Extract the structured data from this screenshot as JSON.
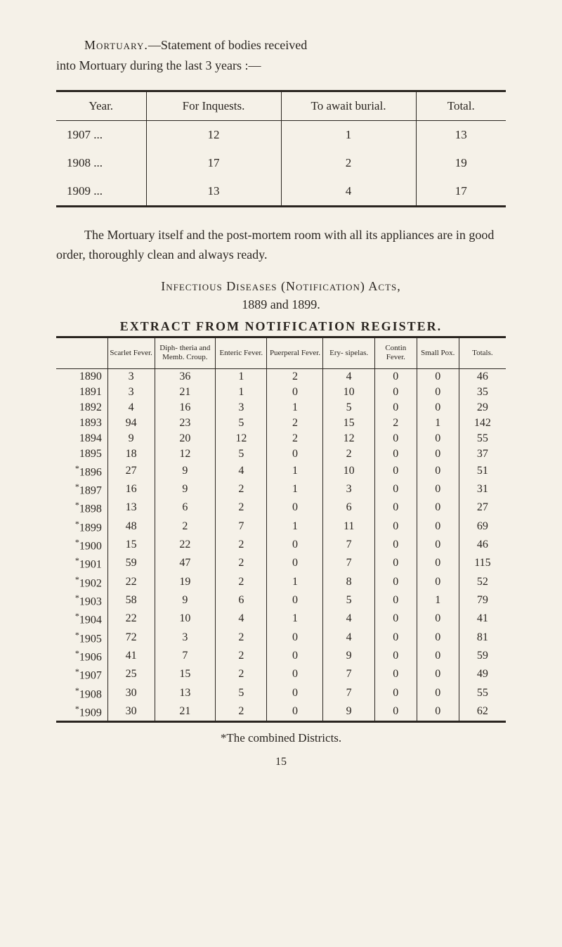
{
  "intro": {
    "line1_prefix": "Mortuary.",
    "line1_rest": "—Statement of bodies received",
    "line2": "into Mortuary during the last 3 years :—"
  },
  "table1": {
    "headers": [
      "Year.",
      "For Inquests.",
      "To await burial.",
      "Total."
    ],
    "rows": [
      [
        "1907 ...",
        "12",
        "1",
        "13"
      ],
      [
        "1908 ...",
        "17",
        "2",
        "19"
      ],
      [
        "1909 ...",
        "13",
        "4",
        "17"
      ]
    ],
    "col_widths": [
      "20%",
      "30%",
      "30%",
      "20%"
    ]
  },
  "middle": "The Mortuary itself and the post-mortem room with all its appliances are in good order, thoroughly clean and always ready.",
  "section": {
    "title_part1": "Infectious Diseases (Notification) Acts,",
    "dates": "1889 and 1899.",
    "extract": "EXTRACT FROM NOTIFICATION REGISTER."
  },
  "table2": {
    "headers": [
      "",
      "Scarlet Fever.",
      "Diph- theria and Memb. Croup.",
      "Enteric Fever.",
      "Puerperal Fever.",
      "Ery- sipelas.",
      "Contin Fever.",
      "Small Pox.",
      "Totals."
    ],
    "rows": [
      {
        "year": "1890",
        "mark": "",
        "vals": [
          "3",
          "36",
          "1",
          "2",
          "4",
          "0",
          "0",
          "46"
        ]
      },
      {
        "year": "1891",
        "mark": "",
        "vals": [
          "3",
          "21",
          "1",
          "0",
          "10",
          "0",
          "0",
          "35"
        ]
      },
      {
        "year": "1892",
        "mark": "",
        "vals": [
          "4",
          "16",
          "3",
          "1",
          "5",
          "0",
          "0",
          "29"
        ]
      },
      {
        "year": "1893",
        "mark": "",
        "vals": [
          "94",
          "23",
          "5",
          "2",
          "15",
          "2",
          "1",
          "142"
        ]
      },
      {
        "year": "1894",
        "mark": "",
        "vals": [
          "9",
          "20",
          "12",
          "2",
          "12",
          "0",
          "0",
          "55"
        ]
      },
      {
        "year": "1895",
        "mark": "",
        "vals": [
          "18",
          "12",
          "5",
          "0",
          "2",
          "0",
          "0",
          "37"
        ]
      },
      {
        "year": "1896",
        "mark": "*",
        "vals": [
          "27",
          "9",
          "4",
          "1",
          "10",
          "0",
          "0",
          "51"
        ]
      },
      {
        "year": "1897",
        "mark": "*",
        "vals": [
          "16",
          "9",
          "2",
          "1",
          "3",
          "0",
          "0",
          "31"
        ]
      },
      {
        "year": "1898",
        "mark": "*",
        "vals": [
          "13",
          "6",
          "2",
          "0",
          "6",
          "0",
          "0",
          "27"
        ]
      },
      {
        "year": "1899",
        "mark": "*",
        "vals": [
          "48",
          "2",
          "7",
          "1",
          "11",
          "0",
          "0",
          "69"
        ]
      },
      {
        "year": "1900",
        "mark": "*",
        "vals": [
          "15",
          "22",
          "2",
          "0",
          "7",
          "0",
          "0",
          "46"
        ]
      },
      {
        "year": "1901",
        "mark": "*",
        "vals": [
          "59",
          "47",
          "2",
          "0",
          "7",
          "0",
          "0",
          "115"
        ]
      },
      {
        "year": "1902",
        "mark": "*",
        "vals": [
          "22",
          "19",
          "2",
          "1",
          "8",
          "0",
          "0",
          "52"
        ]
      },
      {
        "year": "1903",
        "mark": "*",
        "vals": [
          "58",
          "9",
          "6",
          "0",
          "5",
          "0",
          "1",
          "79"
        ]
      },
      {
        "year": "1904",
        "mark": "*",
        "vals": [
          "22",
          "10",
          "4",
          "1",
          "4",
          "0",
          "0",
          "41"
        ]
      },
      {
        "year": "1905",
        "mark": "*",
        "vals": [
          "72",
          "3",
          "2",
          "0",
          "4",
          "0",
          "0",
          "81"
        ]
      },
      {
        "year": "1906",
        "mark": "*",
        "vals": [
          "41",
          "7",
          "2",
          "0",
          "9",
          "0",
          "0",
          "59"
        ]
      },
      {
        "year": "1907",
        "mark": "*",
        "vals": [
          "25",
          "15",
          "2",
          "0",
          "7",
          "0",
          "0",
          "49"
        ]
      },
      {
        "year": "1908",
        "mark": "*",
        "vals": [
          "30",
          "13",
          "5",
          "0",
          "7",
          "0",
          "0",
          "55"
        ]
      },
      {
        "year": "1909",
        "mark": "*",
        "vals": [
          "30",
          "21",
          "2",
          "0",
          "9",
          "0",
          "0",
          "62"
        ]
      }
    ]
  },
  "footnote": "*The combined Districts.",
  "page_num": "15",
  "colors": {
    "bg": "#f5f1e8",
    "text": "#2a2520",
    "border": "#2a2520"
  }
}
